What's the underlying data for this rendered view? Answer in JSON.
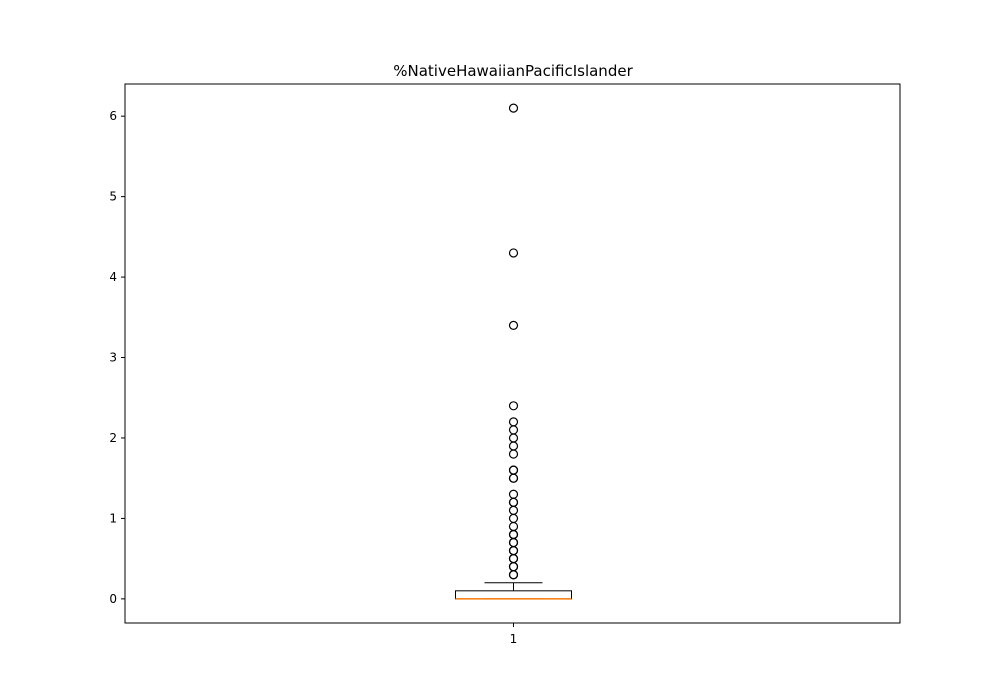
{
  "chart_data": {
    "type": "box",
    "title": "%NativeHawaiianPacificIslander",
    "categories": [
      "1"
    ],
    "ylim": [
      -0.3,
      6.4
    ],
    "yticks": [
      0,
      1,
      2,
      3,
      4,
      5,
      6
    ],
    "grid": false,
    "box": {
      "min": 0,
      "q1": 0,
      "median": 0,
      "q3": 0.1,
      "whisker_low": 0,
      "whisker_high": 0.2
    },
    "outliers": [
      0.3,
      0.3,
      0.4,
      0.4,
      0.5,
      0.5,
      0.6,
      0.6,
      0.7,
      0.7,
      0.8,
      0.8,
      0.9,
      1.0,
      1.1,
      1.2,
      1.2,
      1.3,
      1.5,
      1.5,
      1.6,
      1.6,
      1.8,
      1.9,
      2.0,
      2.1,
      2.2,
      2.4,
      3.4,
      4.3,
      6.1
    ],
    "colors": {
      "box": "#000000",
      "median": "#ff7f0e",
      "outlier": "#000000"
    }
  }
}
